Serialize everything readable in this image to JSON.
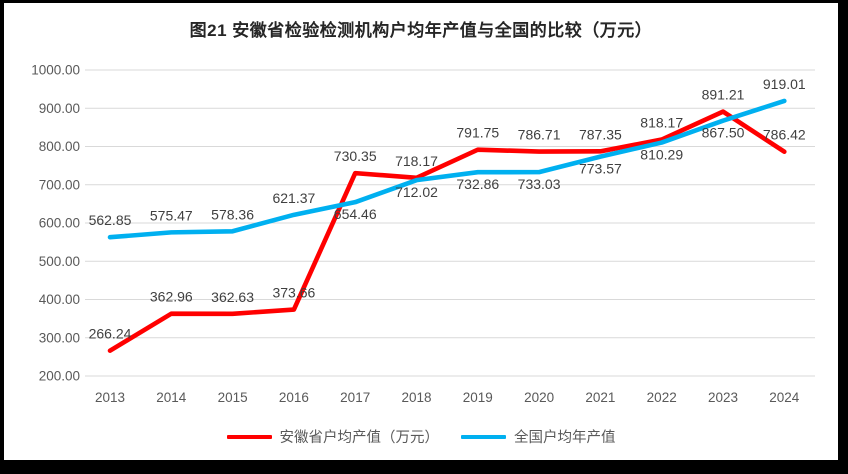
{
  "window": {
    "frame_color": "#000000",
    "canvas_background": "#ffffff"
  },
  "chart_data": {
    "type": "line",
    "title": "图21 安徽省检验检测机构户均年产值与全国的比较（万元）",
    "categories": [
      "2013",
      "2014",
      "2015",
      "2016",
      "2017",
      "2018",
      "2019",
      "2020",
      "2021",
      "2022",
      "2023",
      "2024"
    ],
    "series": [
      {
        "name": "安徽省户均产值（万元）",
        "color": "#FF0000",
        "values": [
          266.24,
          362.96,
          362.63,
          373.66,
          730.35,
          718.17,
          791.75,
          786.71,
          787.35,
          818.17,
          891.21,
          786.42
        ],
        "label_side": [
          "above",
          "above",
          "above",
          "above",
          "above",
          "above",
          "above",
          "above",
          "above",
          "above",
          "above",
          "above"
        ]
      },
      {
        "name": "全国户均年产值",
        "color": "#00B0F0",
        "values": [
          562.85,
          575.47,
          578.36,
          621.37,
          654.46,
          712.02,
          732.86,
          733.03,
          773.57,
          810.29,
          867.5,
          919.01
        ],
        "label_side": [
          "above",
          "above",
          "above",
          "above",
          "below",
          "below",
          "below",
          "below",
          "below",
          "below",
          "below",
          "above"
        ]
      }
    ],
    "ylim": [
      200,
      1000
    ],
    "ytick_step": 100,
    "y_tick_labels": [
      "200.00",
      "300.00",
      "400.00",
      "500.00",
      "600.00",
      "700.00",
      "800.00",
      "900.00",
      "1000.00"
    ],
    "value_decimals": 2,
    "grid": true,
    "legend_position": "bottom",
    "colors": {
      "gridline": "#D9D9D9",
      "axis_text": "#595959",
      "data_label": "#404040",
      "title_text": "#262626"
    }
  }
}
